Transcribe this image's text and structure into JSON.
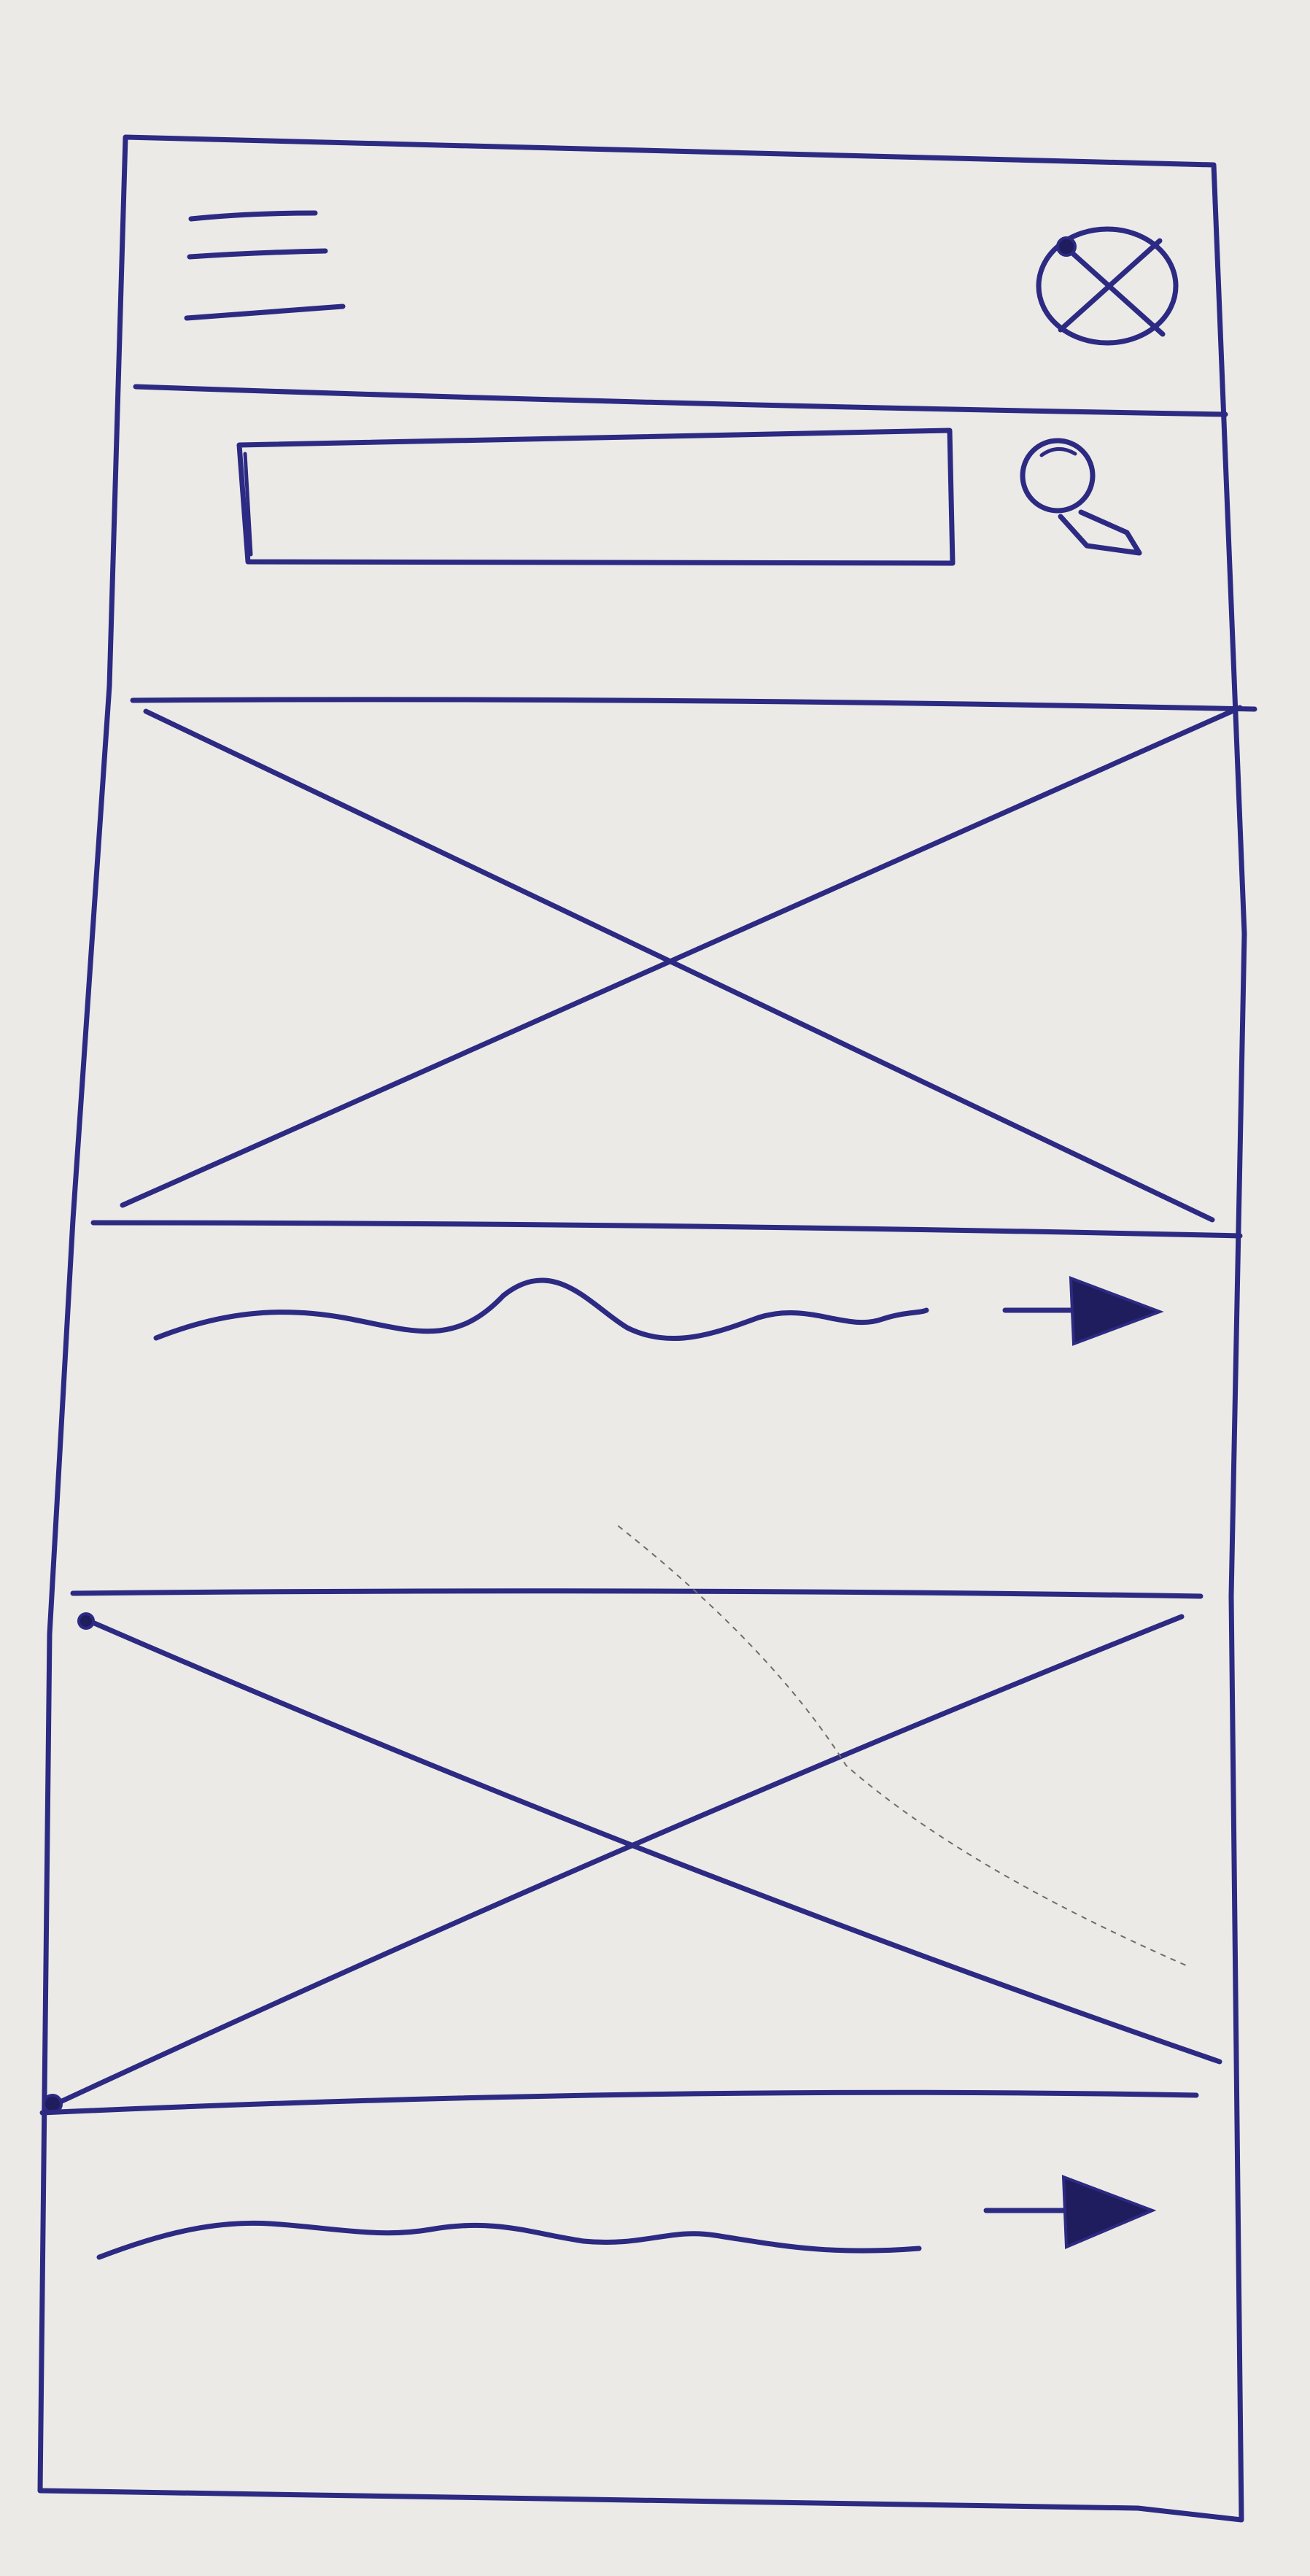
{
  "wireframe": {
    "ink_color": "#2c2a82",
    "paper_color": "#ebeae6",
    "header": {
      "menu_icon": "hamburger-menu-icon",
      "close_icon": "circle-x-icon"
    },
    "search": {
      "value": "",
      "placeholder": "",
      "icon": "magnifier-icon"
    },
    "cards": [
      {
        "image": "image-placeholder-x",
        "text": "wavy-text-line",
        "arrow": "arrow-right-icon"
      },
      {
        "image": "image-placeholder-x",
        "text": "wavy-text-line",
        "arrow": "arrow-right-icon"
      }
    ]
  }
}
